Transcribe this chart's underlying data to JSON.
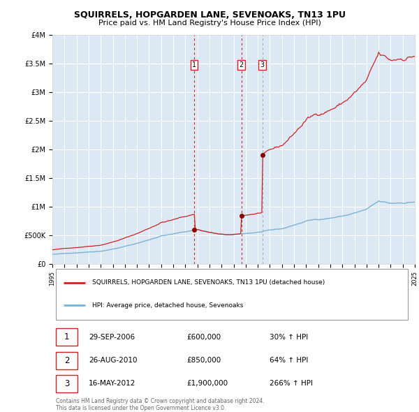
{
  "title": "SQUIRRELS, HOPGARDEN LANE, SEVENOAKS, TN13 1PU",
  "subtitle": "Price paid vs. HM Land Registry's House Price Index (HPI)",
  "background_color": "#dce9f5",
  "ylim": [
    0,
    4000000
  ],
  "yticks": [
    0,
    500000,
    1000000,
    1500000,
    2000000,
    2500000,
    3000000,
    3500000,
    4000000
  ],
  "ytick_labels": [
    "£0",
    "£500K",
    "£1M",
    "£1.5M",
    "£2M",
    "£2.5M",
    "£3M",
    "£3.5M",
    "£4M"
  ],
  "x_start_year": 1995,
  "x_end_year": 2025,
  "hpi_line_color": "#7ab3d4",
  "price_line_color": "#cc2222",
  "sale_marker_color": "#8b0000",
  "vline_colors": [
    "#cc2222",
    "#cc2222",
    "#aaaaaa"
  ],
  "vline_styles": [
    "--",
    "--",
    "--"
  ],
  "sale_dates": [
    2006.75,
    2010.65,
    2012.37
  ],
  "sale_prices": [
    600000,
    850000,
    1900000
  ],
  "sale_labels": [
    "1",
    "2",
    "3"
  ],
  "legend_line1": "SQUIRRELS, HOPGARDEN LANE, SEVENOAKS, TN13 1PU (detached house)",
  "legend_line2": "HPI: Average price, detached house, Sevenoaks",
  "table_rows": [
    {
      "label": "1",
      "date": "29-SEP-2006",
      "price": "£600,000",
      "pct": "30% ↑ HPI"
    },
    {
      "label": "2",
      "date": "26-AUG-2010",
      "price": "£850,000",
      "pct": "64% ↑ HPI"
    },
    {
      "label": "3",
      "date": "16-MAY-2012",
      "price": "£1,900,000",
      "pct": "266% ↑ HPI"
    }
  ],
  "footer_line1": "Contains HM Land Registry data © Crown copyright and database right 2024.",
  "footer_line2": "This data is licensed under the Open Government Licence v3.0."
}
